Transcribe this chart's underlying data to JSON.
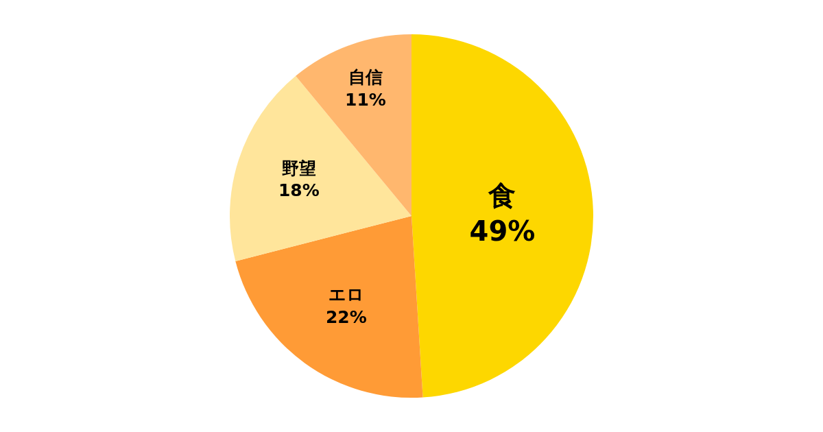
{
  "chart_data": {
    "type": "pie",
    "categories": [
      "食",
      "エロ",
      "野望",
      "自信"
    ],
    "values": [
      49,
      22,
      18,
      11
    ],
    "value_labels": [
      "49%",
      "22%",
      "18%",
      "11%"
    ],
    "colors": [
      "#fdd700",
      "#ff9b36",
      "#ffe59b",
      "#ffb76e"
    ],
    "legend": false
  }
}
